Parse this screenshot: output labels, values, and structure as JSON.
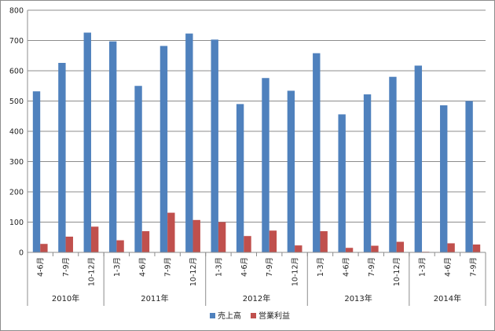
{
  "chart_data": {
    "type": "bar",
    "categories": [
      "4-6月",
      "7-9月",
      "10-12月",
      "1-3月",
      "4-6月",
      "7-9月",
      "10-12月",
      "1-3月",
      "4-6月",
      "7-9月",
      "10-12月",
      "1-3月",
      "4-6月",
      "7-9月",
      "10-12月",
      "1-3月",
      "4-6月",
      "7-9月"
    ],
    "groups": [
      {
        "label": "2010年",
        "span": 3
      },
      {
        "label": "2011年",
        "span": 4
      },
      {
        "label": "2012年",
        "span": 4
      },
      {
        "label": "2013年",
        "span": 4
      },
      {
        "label": "2014年",
        "span": 3
      }
    ],
    "series": [
      {
        "name": "売上高",
        "color": "#4f81bd",
        "values": [
          532,
          626,
          726,
          697,
          550,
          682,
          723,
          703,
          490,
          576,
          534,
          658,
          456,
          522,
          580,
          617,
          486,
          500
        ]
      },
      {
        "name": "営業利益",
        "color": "#c0504d",
        "values": [
          28,
          52,
          85,
          40,
          70,
          131,
          107,
          100,
          54,
          72,
          23,
          70,
          15,
          22,
          35,
          2,
          30,
          26
        ]
      }
    ],
    "yticks": [
      0,
      100,
      200,
      300,
      400,
      500,
      600,
      700,
      800
    ],
    "ylim": [
      0,
      800
    ],
    "grid": true,
    "legend": "bottom"
  }
}
